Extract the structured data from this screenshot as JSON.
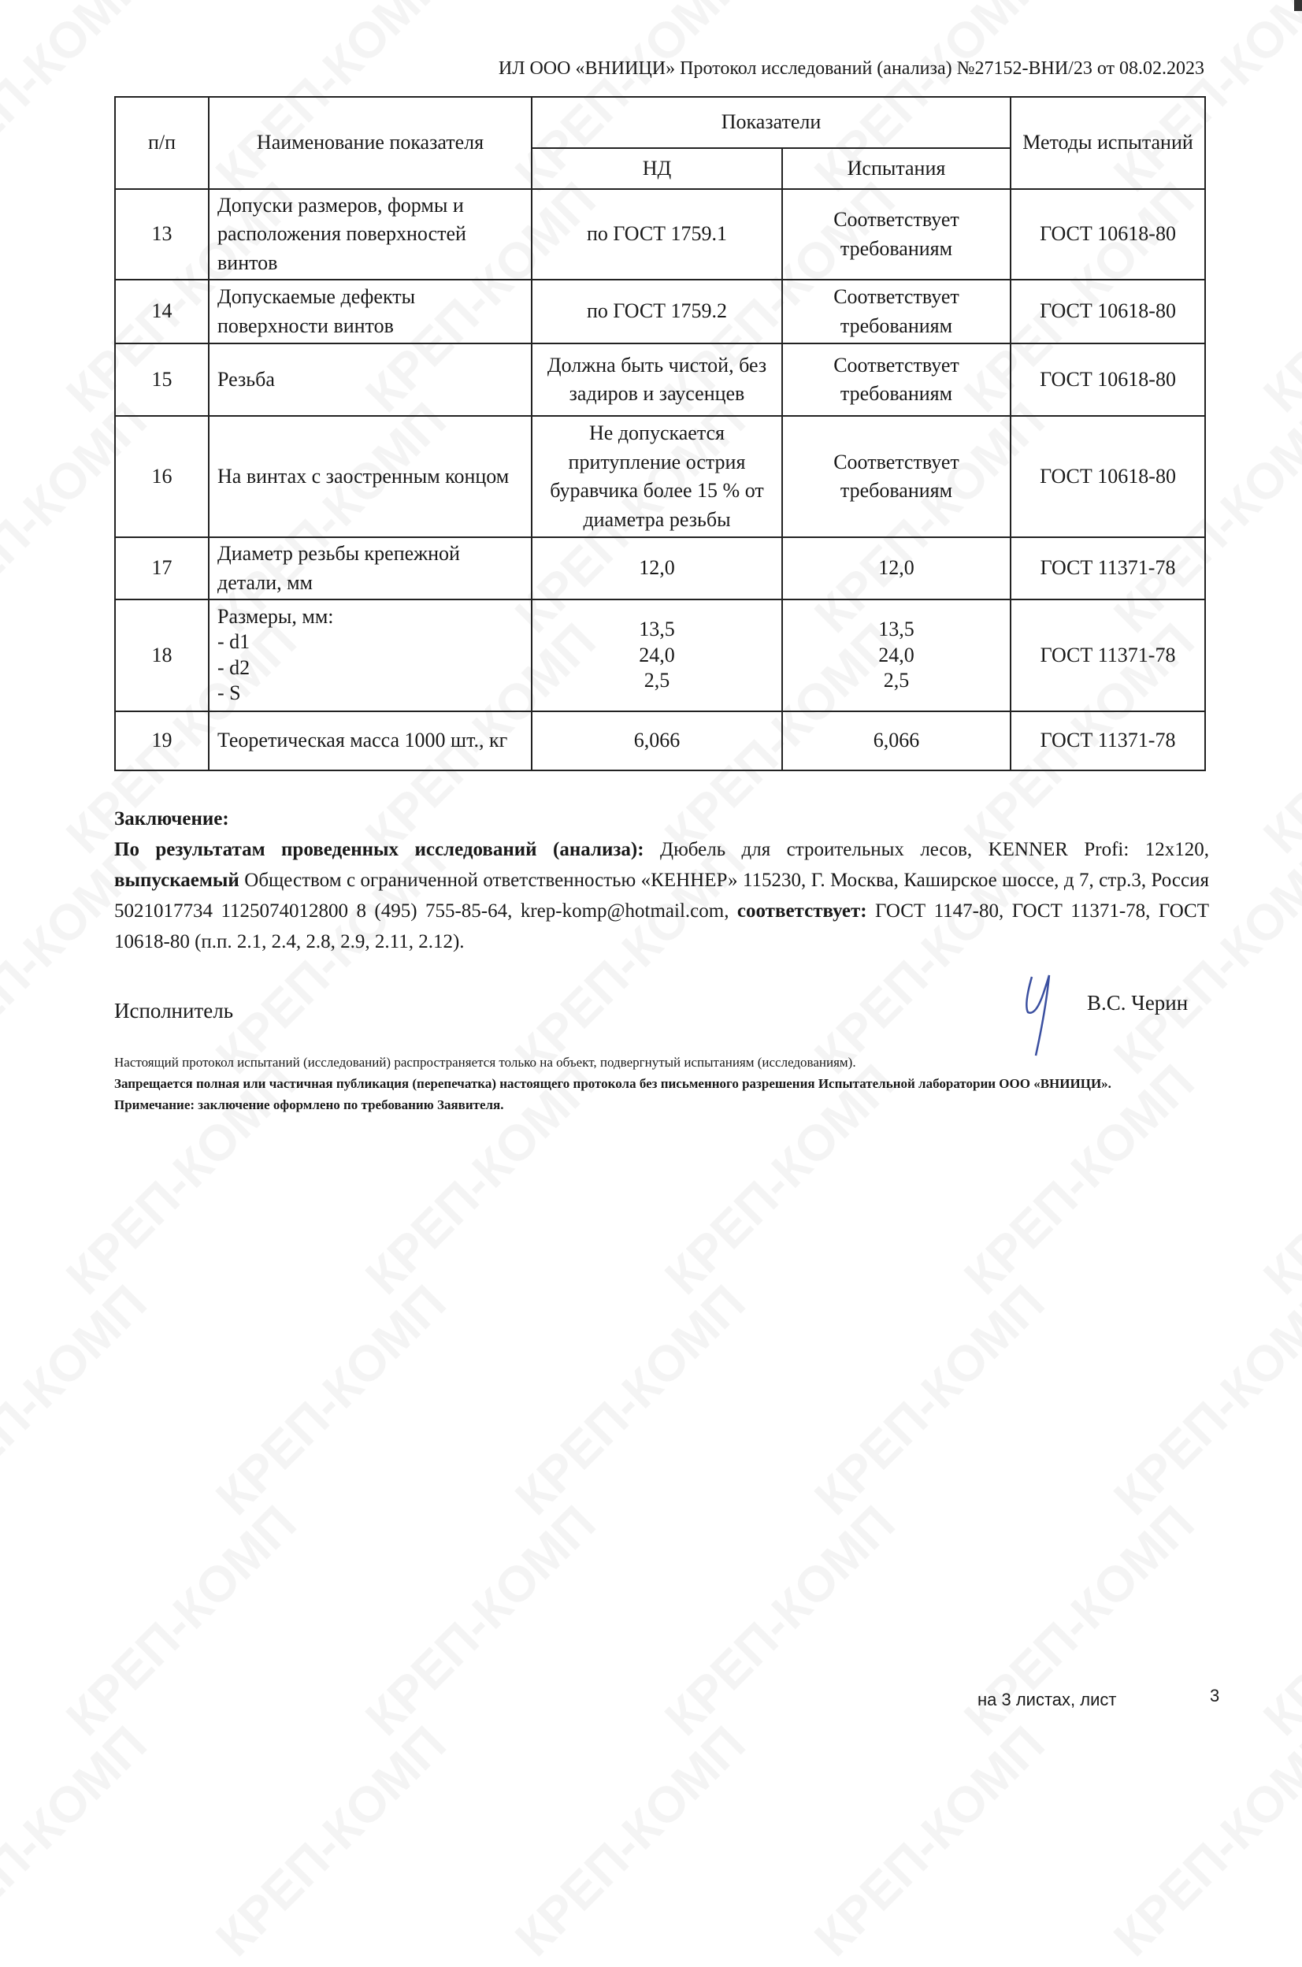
{
  "watermark": "КРЕП-КОМП",
  "header": "ИЛ ООО «ВНИИЦИ» Протокол исследований (анализа) №27152-ВНИ/23 от 08.02.2023",
  "table": {
    "col_num": "п/п",
    "col_name": "Наименование показателя",
    "col_indicators": "Показатели",
    "col_nd": "НД",
    "col_test": "Испытания",
    "col_methods": "Методы испытаний",
    "rows": [
      {
        "n": "13",
        "name": "Допуски размеров, формы и расположения поверхностей винтов",
        "nd": "по ГОСТ 1759.1",
        "test": "Соответствует требованиям",
        "method": "ГОСТ 10618-80"
      },
      {
        "n": "14",
        "name": "Допускаемые дефекты поверхности винтов",
        "nd": "по ГОСТ 1759.2",
        "test": "Соответствует требованиям",
        "method": "ГОСТ 10618-80"
      },
      {
        "n": "15",
        "name": "Резьба",
        "nd": "Должна быть чистой, без задиров и заусенцев",
        "test": "Соответствует требованиям",
        "method": "ГОСТ 10618-80"
      },
      {
        "n": "16",
        "name": "На винтах с заостренным концом",
        "nd": "Не допускается притупление острия буравчика более 15 % от диаметра резьбы",
        "test": "Соответствует требованиям",
        "method": "ГОСТ 10618-80"
      },
      {
        "n": "17",
        "name": "Диаметр резьбы крепежной детали, мм",
        "nd": "12,0",
        "test": "12,0",
        "method": "ГОСТ 11371-78"
      },
      {
        "n": "18",
        "name": "Размеры, мм:",
        "sub": [
          "- d1",
          "- d2",
          "- S"
        ],
        "nd_list": [
          "13,5",
          "24,0",
          "2,5"
        ],
        "test_list": [
          "13,5",
          "24,0",
          "2,5"
        ],
        "method": "ГОСТ 11371-78"
      },
      {
        "n": "19",
        "name": "Теоретическая масса 1000 шт., кг",
        "nd": "6,066",
        "test": "6,066",
        "method": "ГОСТ 11371-78"
      }
    ]
  },
  "conclusion": {
    "title": "Заключение:",
    "lead": "По результатам проведенных исследований (анализа):",
    "text1": " Дюбель для строительных лесов, KENNER Profi: 12x120, ",
    "bold2": "выпускаемый",
    "text2": " Обществом с ограниченной ответственностью «КЕННЕР» 115230, Г. Москва, Каширское шоссе, д 7, стр.3, Россия 5021017734 1125074012800 8 (495) 755-85-64, krep-komp@hotmail.com, ",
    "bold3": "соответствует:",
    "text3": " ГОСТ 1147-80, ГОСТ 11371-78, ГОСТ 10618-80 (п.п. 2.1, 2.4, 2.8, 2.9, 2.11, 2.12)."
  },
  "executor_label": "Исполнитель",
  "executor_name": "В.С. Черин",
  "fine_print": {
    "line1": "Настоящий протокол испытаний (исследований) распространяется только на объект, подвергнутый испытаниям (исследованиям).",
    "line2": "Запрещается полная или частичная публикация (перепечатка) настоящего протокола без письменного разрешения Испытательной лаборатории ООО «ВНИИЦИ».",
    "line3": "Примечание: заключение оформлено по требованию Заявителя."
  },
  "footer": {
    "sheets": "на 3 листах, лист",
    "page": "3"
  },
  "colors": {
    "signature": "#3a4fa0"
  }
}
